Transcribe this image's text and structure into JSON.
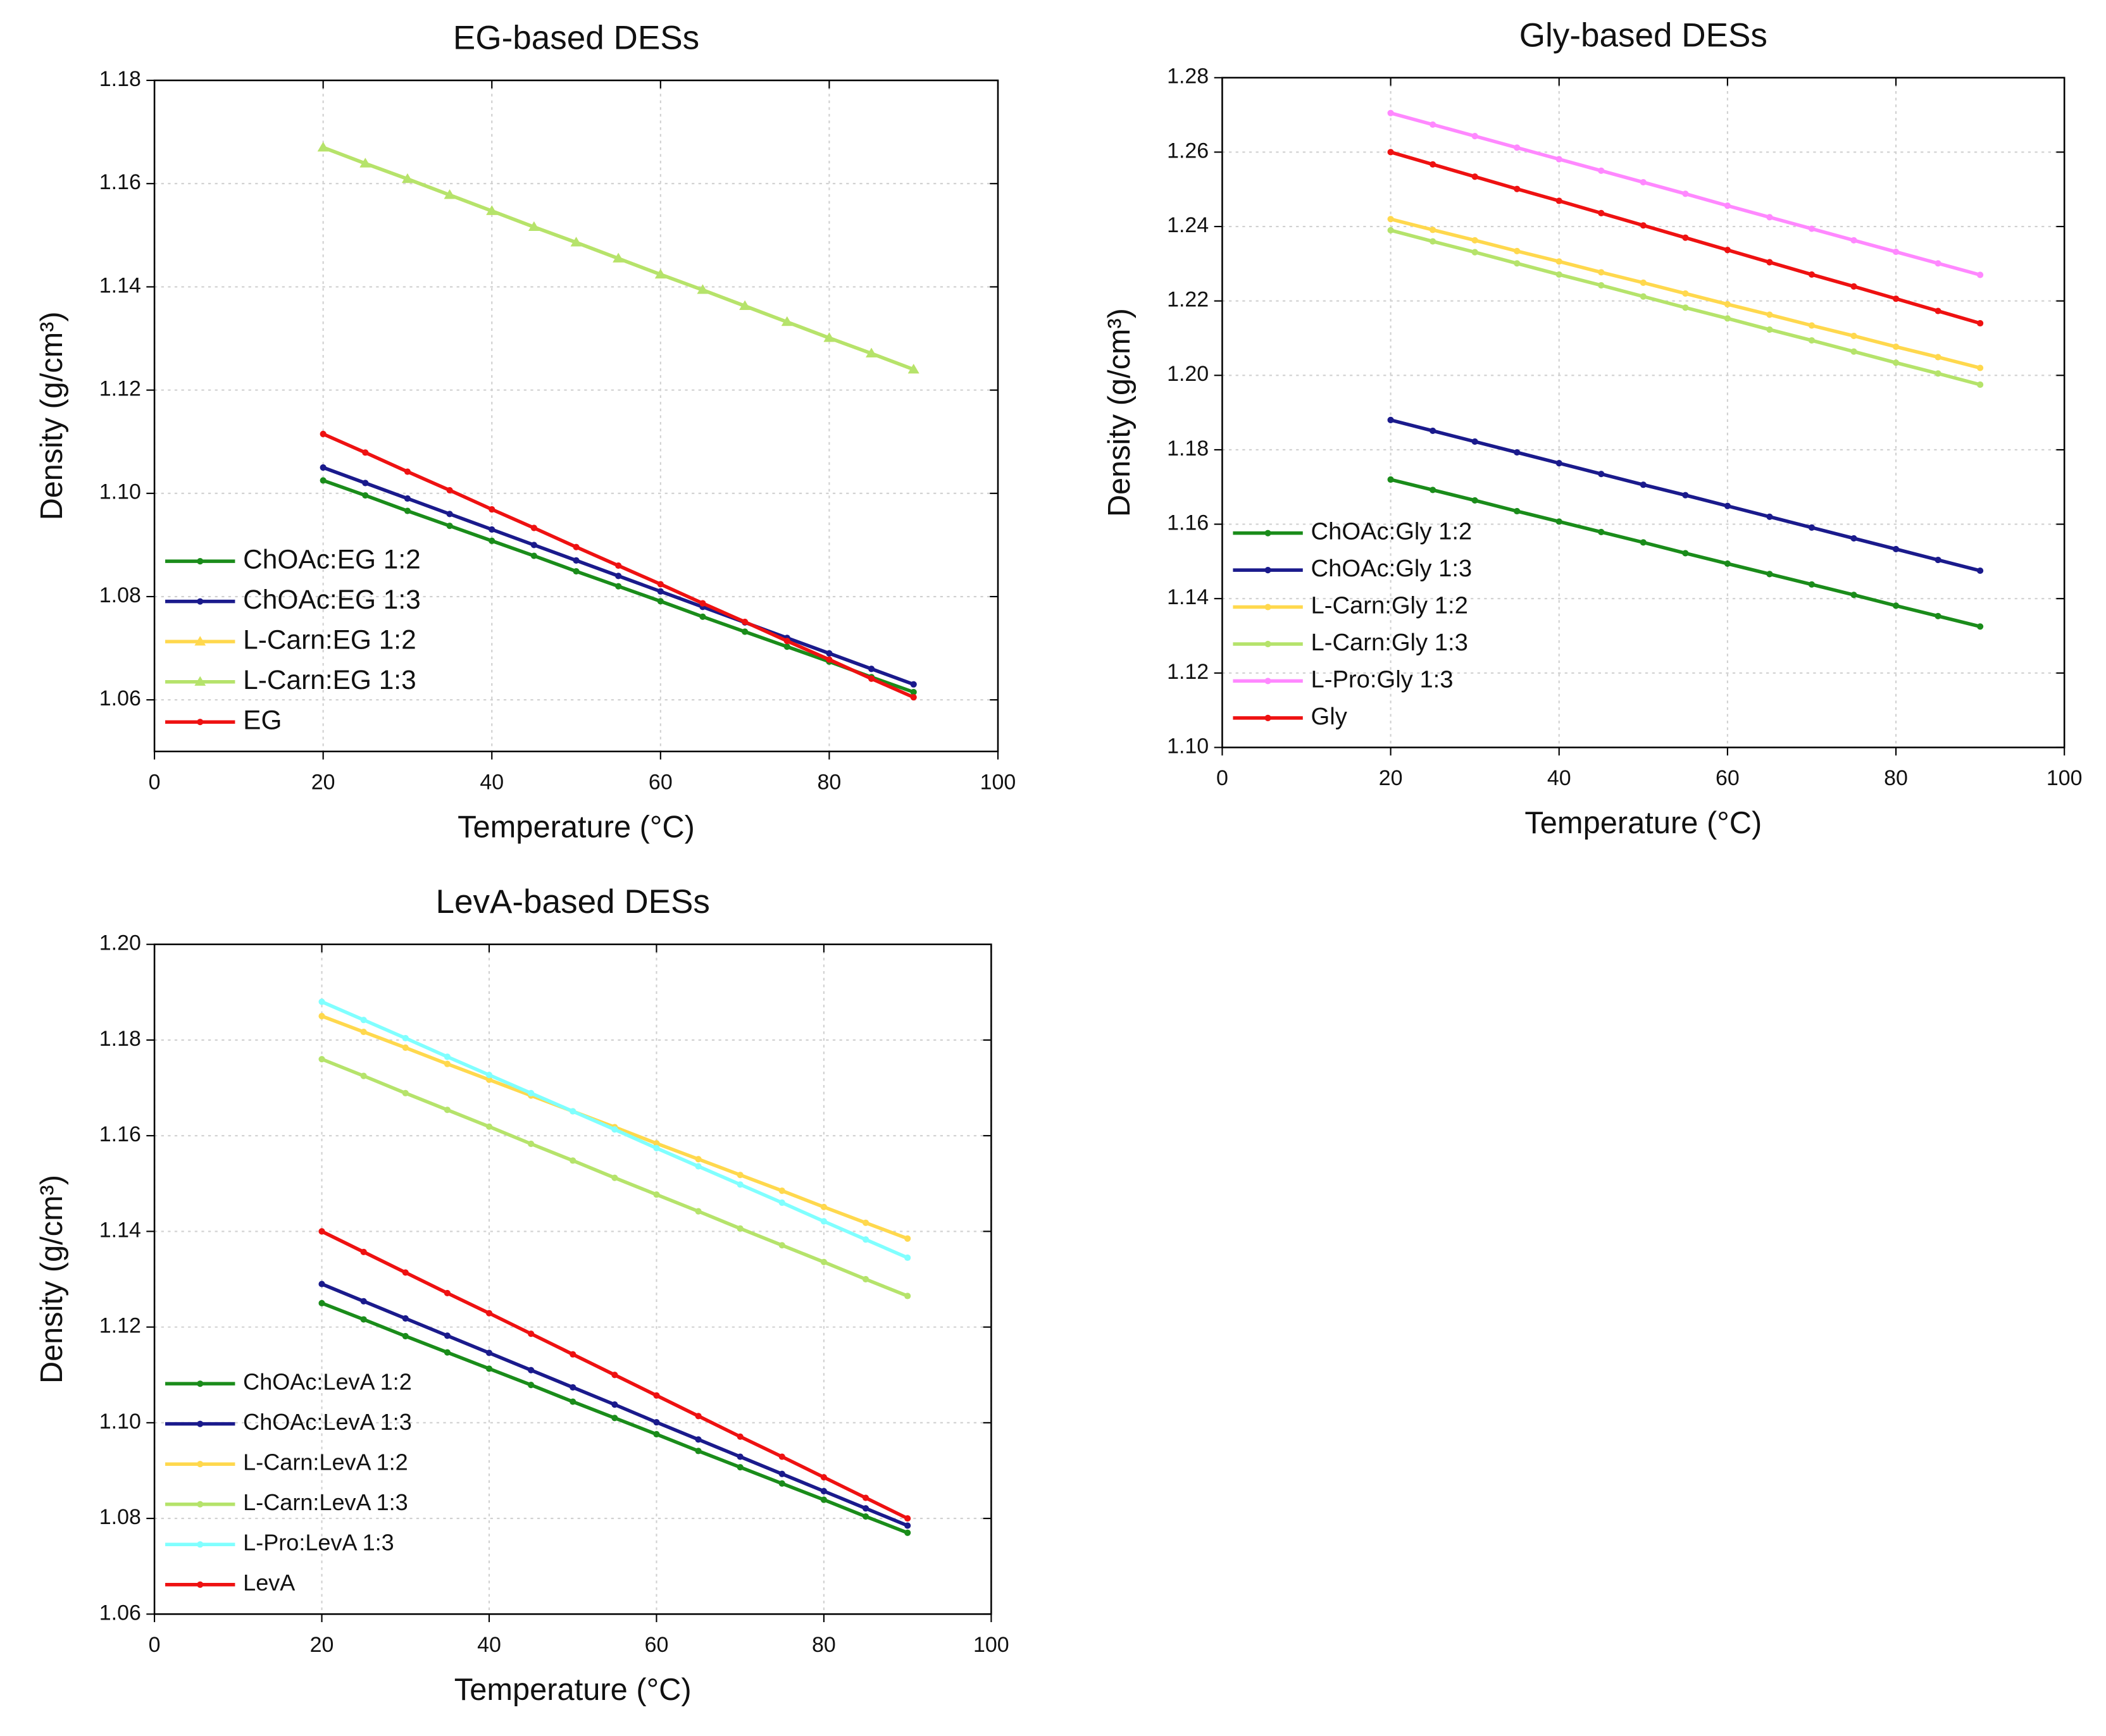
{
  "chart_data": [
    {
      "type": "line",
      "title": "EG-based DESs",
      "xlabel": "Temperature (°C)",
      "ylabel": "Density (g/cm³)",
      "xlim": [
        0,
        100
      ],
      "xticks": [
        0,
        20,
        40,
        60,
        80,
        100
      ],
      "ylim": [
        1.05,
        1.18
      ],
      "yticks": [
        1.06,
        1.08,
        {
          "value": 1.1,
          "label": "1.10"
        },
        1.12,
        1.14,
        1.16,
        1.18
      ],
      "grid": true,
      "legend": "lower left",
      "x": [
        20,
        25,
        30,
        35,
        40,
        45,
        50,
        55,
        60,
        65,
        70,
        75,
        80,
        85,
        90
      ],
      "series": [
        {
          "name": "ChOAc:EG 1:2",
          "color": "#1a8c1a",
          "marker": "circle",
          "values": [
            1.1025,
            1.0996,
            1.0966,
            1.0937,
            1.0908,
            1.0879,
            1.0849,
            1.082,
            1.0791,
            1.0761,
            1.0732,
            1.0703,
            1.0674,
            1.0644,
            1.0615
          ]
        },
        {
          "name": "ChOAc:EG 1:3",
          "color": "#1a1a8c",
          "marker": "circle",
          "values": [
            1.105,
            1.102,
            1.099,
            1.096,
            1.093,
            1.09,
            1.087,
            1.084,
            1.081,
            1.078,
            1.075,
            1.072,
            1.069,
            1.066,
            1.063
          ]
        },
        {
          "name": "L-Carn:EG 1:2",
          "color": "#ffd84d",
          "marker": "triangle",
          "values": [
            1.167,
            1.1639,
            1.1609,
            1.1578,
            1.1547,
            1.1516,
            1.1486,
            1.1455,
            1.1424,
            1.1394,
            1.1363,
            1.1332,
            1.1301,
            1.1271,
            1.124
          ]
        },
        {
          "name": "L-Carn:EG 1:3",
          "color": "#b5e36b",
          "marker": "triangle",
          "values": [
            1.167,
            1.1639,
            1.1609,
            1.1578,
            1.1547,
            1.1516,
            1.1486,
            1.1455,
            1.1424,
            1.1394,
            1.1363,
            1.1332,
            1.1301,
            1.1271,
            1.124
          ]
        },
        {
          "name": "EG",
          "color": "#ee1111",
          "marker": "circle",
          "values": [
            1.1115,
            1.1079,
            1.1042,
            1.1006,
            1.0969,
            1.0933,
            1.0896,
            1.086,
            1.0824,
            1.0787,
            1.0751,
            1.0714,
            1.0678,
            1.0641,
            1.0605
          ]
        }
      ]
    },
    {
      "type": "line",
      "title": "Gly-based DESs",
      "xlabel": "Temperature (°C)",
      "ylabel": "Density (g/cm³)",
      "xlim": [
        0,
        100
      ],
      "xticks": [
        0,
        20,
        40,
        60,
        80,
        100
      ],
      "ylim": [
        1.1,
        1.28
      ],
      "yticks": [
        {
          "value": 1.1,
          "label": "1.10"
        },
        1.12,
        1.14,
        1.16,
        1.18,
        {
          "value": 1.2,
          "label": "1.20"
        },
        1.22,
        1.24,
        1.26,
        1.28
      ],
      "grid": true,
      "legend": "lower left",
      "x": [
        20,
        25,
        30,
        35,
        40,
        45,
        50,
        55,
        60,
        65,
        70,
        75,
        80,
        85,
        90
      ],
      "series": [
        {
          "name": "ChOAc:Gly 1:2",
          "color": "#1a8c1a",
          "marker": "circle",
          "values": [
            1.172,
            1.1692,
            1.1664,
            1.1635,
            1.1607,
            1.1579,
            1.1551,
            1.1522,
            1.1494,
            1.1466,
            1.1438,
            1.141,
            1.1381,
            1.1353,
            1.1325
          ]
        },
        {
          "name": "ChOAc:Gly 1:3",
          "color": "#1a1a8c",
          "marker": "circle",
          "values": [
            1.188,
            1.1851,
            1.1822,
            1.1793,
            1.1764,
            1.1735,
            1.1706,
            1.1678,
            1.1649,
            1.162,
            1.1591,
            1.1562,
            1.1533,
            1.1504,
            1.1475
          ]
        },
        {
          "name": "L-Carn:Gly 1:2",
          "color": "#ffd84d",
          "marker": "circle",
          "values": [
            1.242,
            1.2391,
            1.2363,
            1.2334,
            1.2306,
            1.2277,
            1.2249,
            1.222,
            1.2191,
            1.2163,
            1.2134,
            1.2106,
            1.2077,
            1.2049,
            1.202
          ]
        },
        {
          "name": "L-Carn:Gly 1:3",
          "color": "#b5e36b",
          "marker": "circle",
          "values": [
            1.239,
            1.236,
            1.2331,
            1.2301,
            1.2271,
            1.2242,
            1.2212,
            1.2182,
            1.2153,
            1.2123,
            1.2094,
            1.2064,
            1.2034,
            1.2005,
            1.1975
          ]
        },
        {
          "name": "L-Pro:Gly 1:3",
          "color": "#ff88ff",
          "marker": "circle",
          "values": [
            1.2705,
            1.2674,
            1.2643,
            1.2612,
            1.2581,
            1.255,
            1.2519,
            1.2488,
            1.2456,
            1.2425,
            1.2394,
            1.2363,
            1.2332,
            1.2301,
            1.227
          ]
        },
        {
          "name": "Gly",
          "color": "#ee1111",
          "marker": "circle",
          "values": [
            1.26,
            1.2567,
            1.2534,
            1.2501,
            1.2469,
            1.2436,
            1.2403,
            1.237,
            1.2337,
            1.2304,
            1.2271,
            1.2239,
            1.2206,
            1.2173,
            1.214
          ]
        }
      ]
    },
    {
      "type": "line",
      "title": "LevA-based DESs",
      "xlabel": "Temperature (°C)",
      "ylabel": "Density (g/cm³)",
      "xlim": [
        0,
        100
      ],
      "xticks": [
        0,
        20,
        40,
        60,
        80,
        100
      ],
      "ylim": [
        1.06,
        1.2
      ],
      "yticks": [
        1.06,
        1.08,
        {
          "value": 1.1,
          "label": "1.10"
        },
        1.12,
        1.14,
        1.16,
        1.18,
        {
          "value": 1.2,
          "label": "1.20"
        }
      ],
      "grid": true,
      "legend": "lower left",
      "x": [
        20,
        25,
        30,
        35,
        40,
        45,
        50,
        55,
        60,
        65,
        70,
        75,
        80,
        85,
        90
      ],
      "series": [
        {
          "name": "ChOAc:LevA 1:2",
          "color": "#1a8c1a",
          "marker": "circle",
          "values": [
            1.125,
            1.1216,
            1.1181,
            1.1147,
            1.1113,
            1.1079,
            1.1044,
            1.101,
            1.0976,
            1.0941,
            1.0907,
            1.0873,
            1.0839,
            1.0804,
            1.077
          ]
        },
        {
          "name": "ChOAc:LevA 1:3",
          "color": "#1a1a8c",
          "marker": "circle",
          "values": [
            1.129,
            1.1254,
            1.1218,
            1.1182,
            1.1146,
            1.111,
            1.1074,
            1.1038,
            1.1001,
            1.0965,
            1.0929,
            1.0893,
            1.0857,
            1.0821,
            1.0785
          ]
        },
        {
          "name": "L-Carn:LevA 1:2",
          "color": "#ffd84d",
          "marker": "circle",
          "values": [
            1.185,
            1.1817,
            1.1784,
            1.175,
            1.1717,
            1.1684,
            1.1651,
            1.1618,
            1.1584,
            1.1551,
            1.1518,
            1.1485,
            1.1451,
            1.1418,
            1.1385
          ]
        },
        {
          "name": "L-Carn:LevA 1:3",
          "color": "#b5e36b",
          "marker": "circle",
          "values": [
            1.176,
            1.1725,
            1.1689,
            1.1654,
            1.1619,
            1.1583,
            1.1548,
            1.1512,
            1.1477,
            1.1442,
            1.1406,
            1.1371,
            1.1336,
            1.13,
            1.1265
          ]
        },
        {
          "name": "L-Pro:LevA 1:3",
          "color": "#80ffff",
          "marker": "circle",
          "values": [
            1.188,
            1.1842,
            1.1804,
            1.1765,
            1.1727,
            1.1689,
            1.1651,
            1.1613,
            1.1574,
            1.1536,
            1.1498,
            1.146,
            1.1421,
            1.1383,
            1.1345
          ]
        },
        {
          "name": "LevA",
          "color": "#ee1111",
          "marker": "circle",
          "values": [
            1.14,
            1.1357,
            1.1314,
            1.1271,
            1.1229,
            1.1186,
            1.1143,
            1.11,
            1.1057,
            1.1014,
            1.0971,
            1.0929,
            1.0886,
            1.0843,
            1.08
          ]
        }
      ]
    }
  ]
}
